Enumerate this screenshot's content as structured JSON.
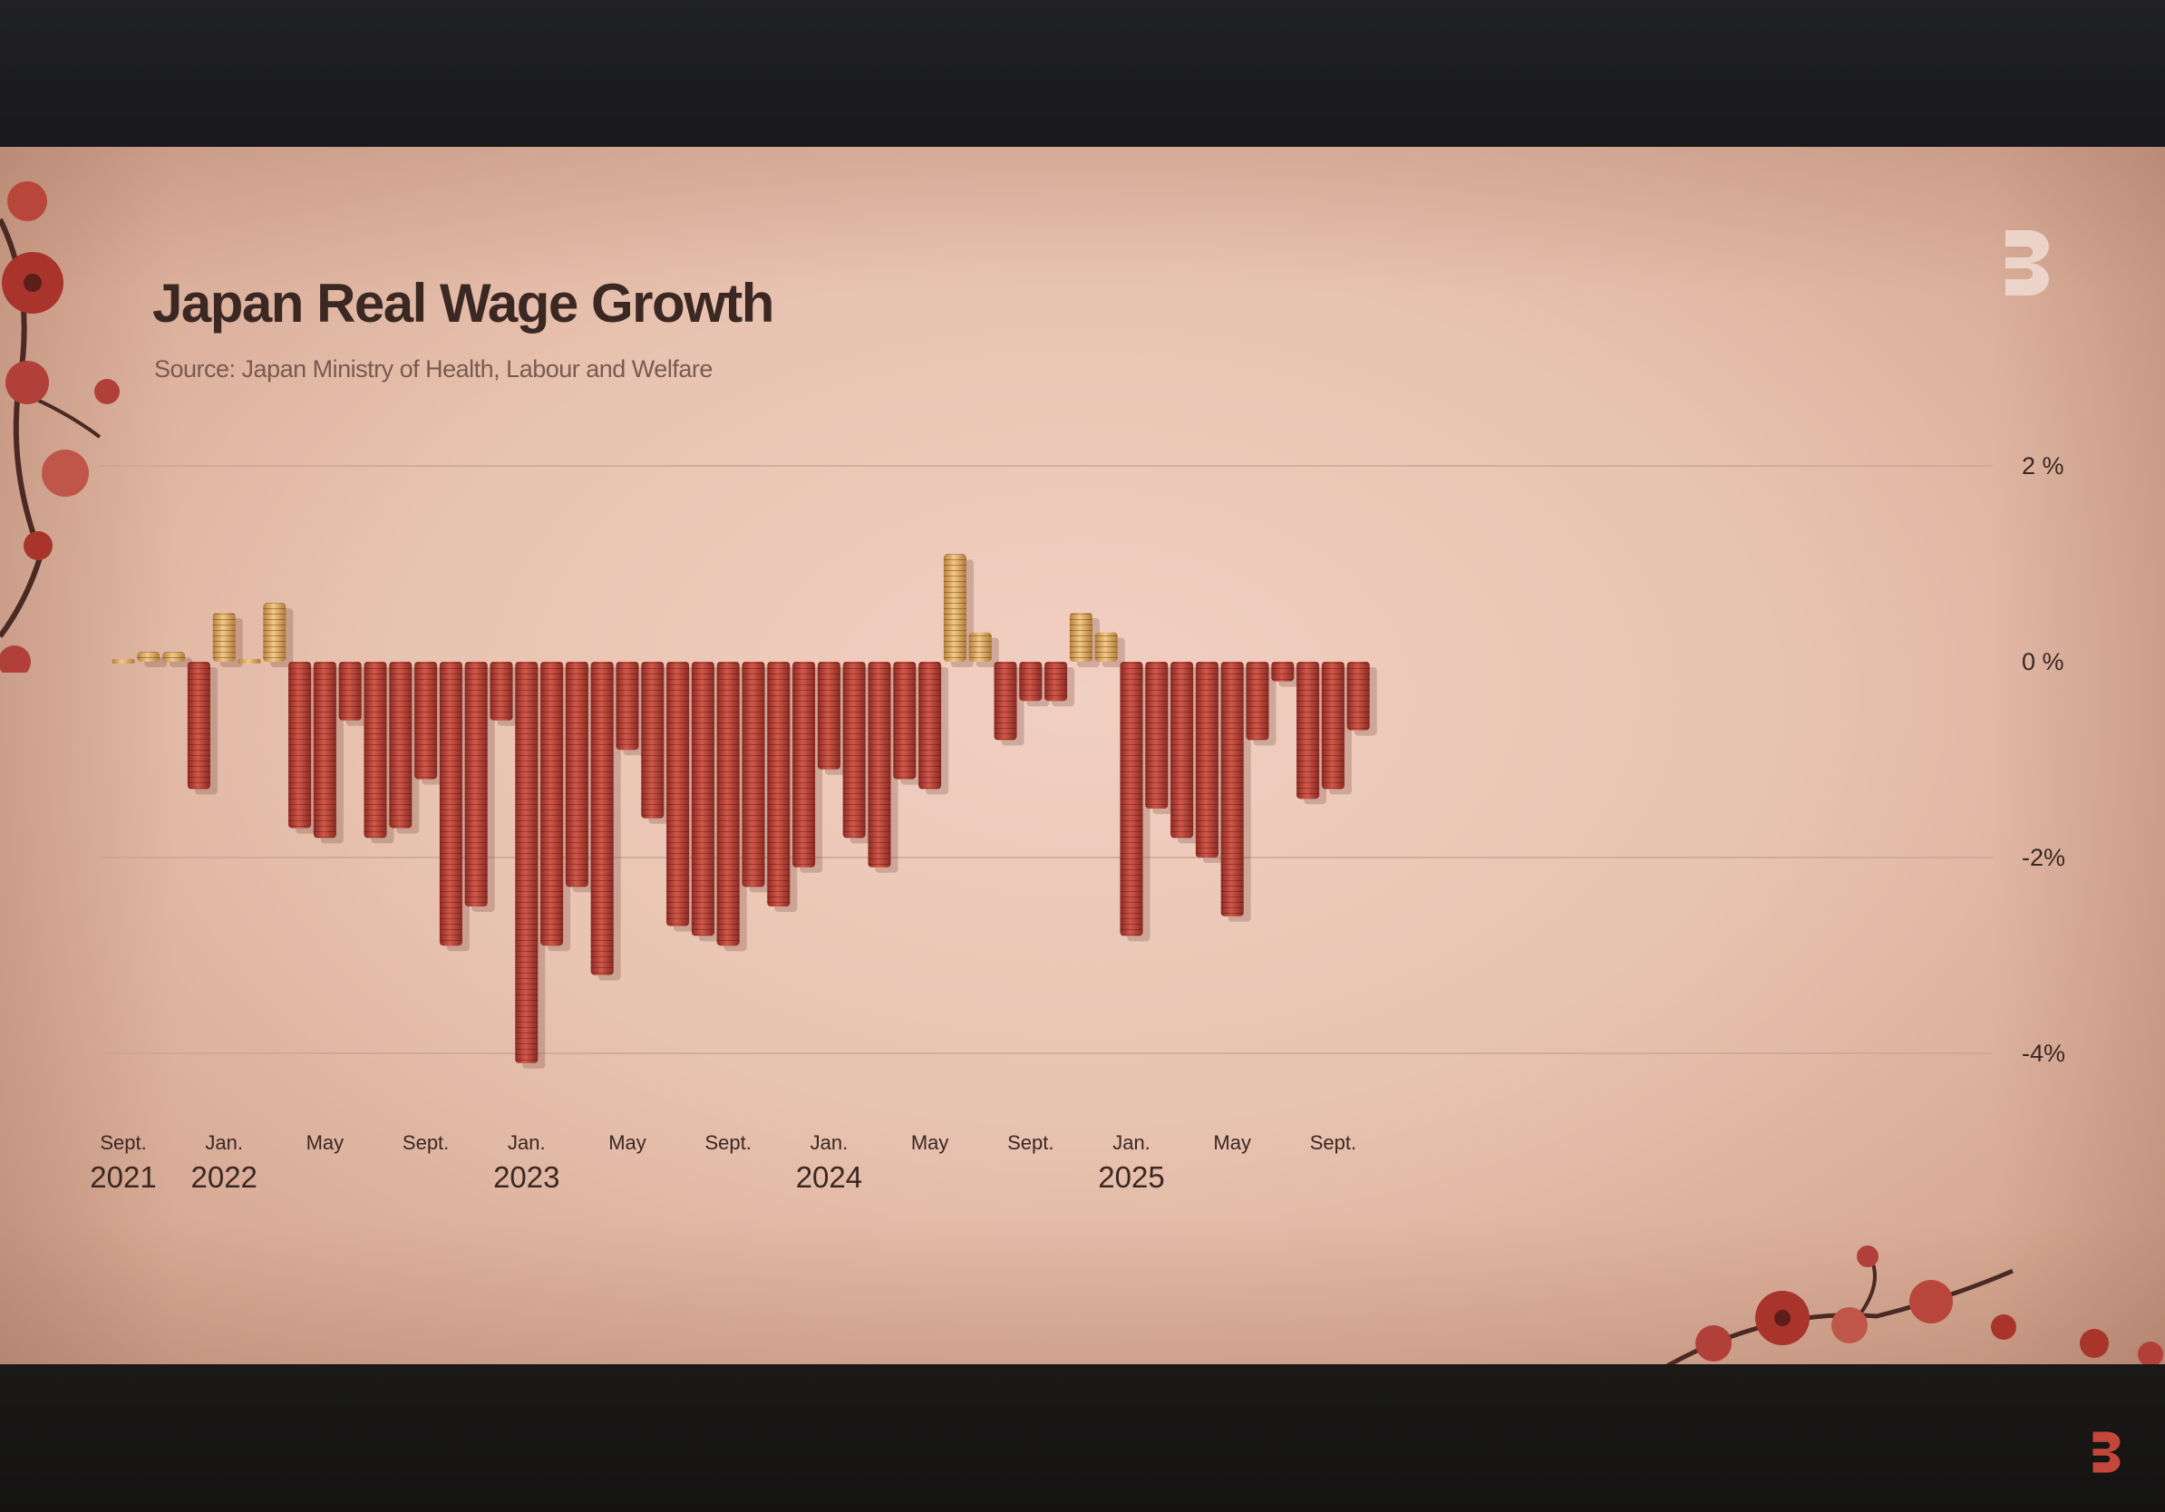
{
  "colors": {
    "negative": "#c3473a",
    "positive": "#e7b36a",
    "title": "#3b2823",
    "source": "#7a5a50",
    "gridline": "#c9a696",
    "frame": "#1b1b1d"
  },
  "header": {
    "title": "Japan Real Wage Growth",
    "source": "Source: Japan Ministry of Health, Labour and Welfare"
  },
  "icons": {
    "brand": "b-logo-icon",
    "corner": "b-logo-icon",
    "decoration": "plum-blossom-icon"
  },
  "chart_data": {
    "type": "bar",
    "title": "Japan Real Wage Growth",
    "subtitle": "Source: Japan Ministry of Health, Labour and Welfare",
    "xlabel": "",
    "ylabel": "",
    "ylim": [
      -4,
      2
    ],
    "yticks": [
      {
        "value": 2,
        "label": "2 %"
      },
      {
        "value": 0,
        "label": "0 %"
      },
      {
        "value": -2,
        "label": "-2%"
      },
      {
        "value": -4,
        "label": "-4%"
      }
    ],
    "grid": true,
    "legend": "none",
    "categories": [
      "2021-09",
      "2021-10",
      "2021-11",
      "2021-12",
      "2022-01",
      "2022-02",
      "2022-03",
      "2022-04",
      "2022-05",
      "2022-06",
      "2022-07",
      "2022-08",
      "2022-09",
      "2022-10",
      "2022-11",
      "2022-12",
      "2023-01",
      "2023-02",
      "2023-03",
      "2023-04",
      "2023-05",
      "2023-06",
      "2023-07",
      "2023-08",
      "2023-09",
      "2023-10",
      "2023-11",
      "2023-12",
      "2024-01",
      "2024-02",
      "2024-03",
      "2024-04",
      "2024-05",
      "2024-06",
      "2024-07",
      "2024-08",
      "2024-09",
      "2024-10",
      "2024-11",
      "2024-12",
      "2025-01",
      "2025-02",
      "2025-03",
      "2025-04",
      "2025-05",
      "2025-06",
      "2025-07",
      "2025-08",
      "2025-09",
      "2025-10"
    ],
    "values": [
      0.0,
      0.1,
      0.1,
      -1.3,
      0.5,
      0.0,
      0.6,
      -1.7,
      -1.8,
      -0.6,
      -1.8,
      -1.7,
      -1.2,
      -2.9,
      -2.5,
      -0.6,
      -4.1,
      -2.9,
      -2.3,
      -3.2,
      -0.9,
      -1.6,
      -2.7,
      -2.8,
      -2.9,
      -2.3,
      -2.5,
      -2.1,
      -1.1,
      -1.8,
      -2.1,
      -1.2,
      -1.3,
      1.1,
      0.3,
      -0.8,
      -0.4,
      -0.4,
      0.5,
      0.3,
      -2.8,
      -1.5,
      -1.8,
      -2.0,
      -2.6,
      -0.8,
      -0.2,
      -1.4,
      -1.3,
      -0.7
    ],
    "x_tick_labels": [
      {
        "index": 0,
        "month": "Sept.",
        "year": "2021"
      },
      {
        "index": 4,
        "month": "Jan.",
        "year": "2022"
      },
      {
        "index": 8,
        "month": "May",
        "year": ""
      },
      {
        "index": 12,
        "month": "Sept.",
        "year": ""
      },
      {
        "index": 16,
        "month": "Jan.",
        "year": "2023"
      },
      {
        "index": 20,
        "month": "May",
        "year": ""
      },
      {
        "index": 24,
        "month": "Sept.",
        "year": ""
      },
      {
        "index": 28,
        "month": "Jan.",
        "year": "2024"
      },
      {
        "index": 32,
        "month": "May",
        "year": ""
      },
      {
        "index": 36,
        "month": "Sept.",
        "year": ""
      },
      {
        "index": 40,
        "month": "Jan.",
        "year": "2025"
      },
      {
        "index": 44,
        "month": "May",
        "year": ""
      },
      {
        "index": 48,
        "month": "Sept.",
        "year": ""
      }
    ]
  }
}
